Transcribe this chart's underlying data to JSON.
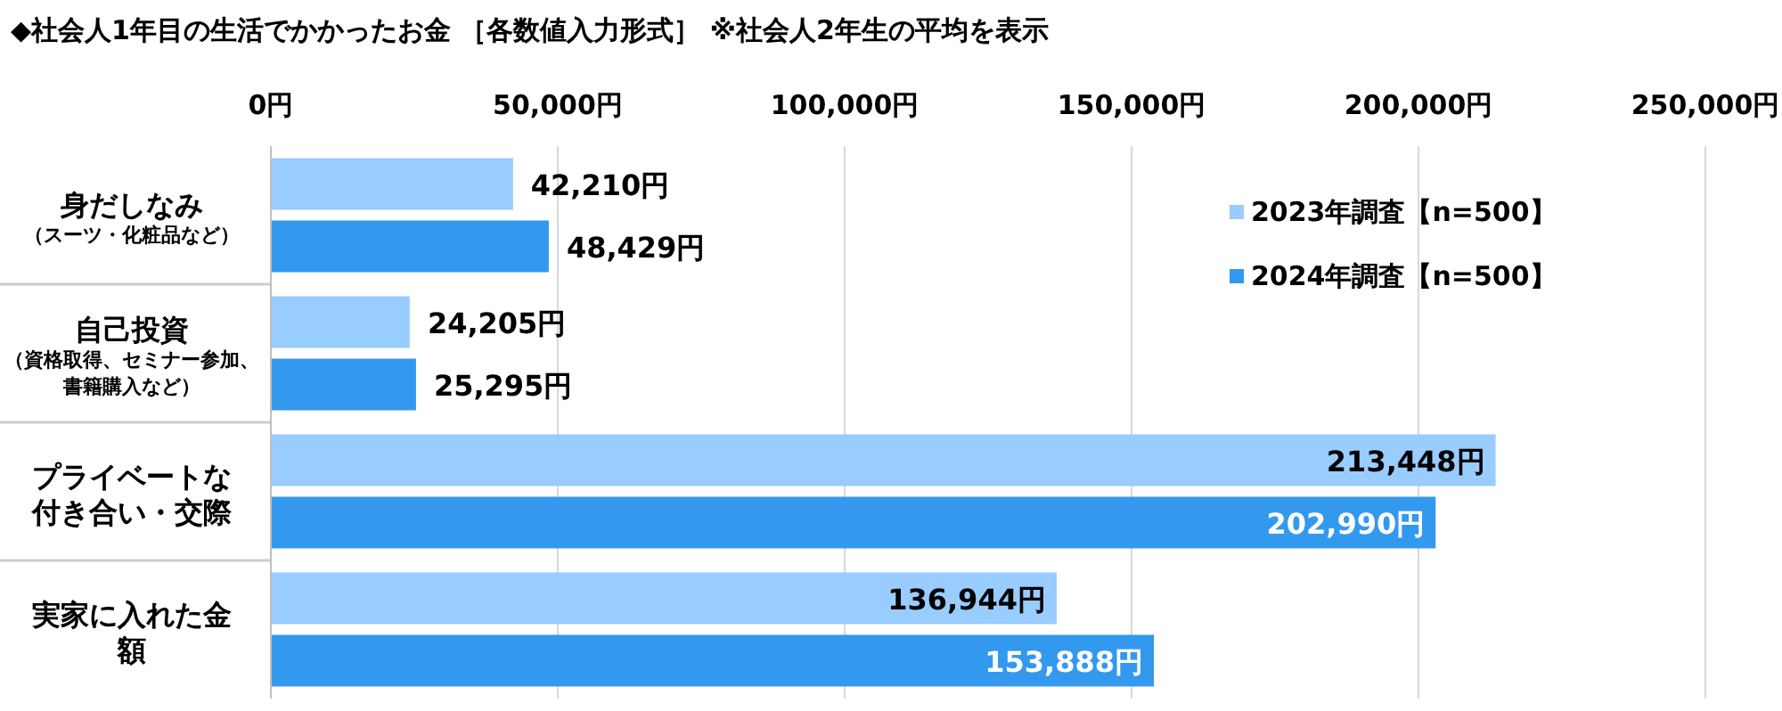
{
  "chart_data": {
    "type": "bar",
    "orientation": "horizontal",
    "title": "◆社会人1年目の生活でかかったお金 ［各数値入力形式］ ※社会人2年生の平均を表示",
    "categories": [
      "身だしなみ（スーツ・化粧品など）",
      "自己投資（資格取得、セミナー参加、書籍購入など）",
      "プライベートな付き合い・交際",
      "実家に入れた金額"
    ],
    "series": [
      {
        "name": "2023年調査【n=500】",
        "color": "#99ccff",
        "values": [
          42210,
          24205,
          213448,
          136944
        ],
        "value_labels": [
          "42,210円",
          "24,205円",
          "213,448円",
          "136,944円"
        ]
      },
      {
        "name": "2024年調査【n=500】",
        "color": "#3399ee",
        "values": [
          48429,
          25295,
          202990,
          153888
        ],
        "value_labels": [
          "48,429円",
          "25,295円",
          "202,990円",
          "153,888円"
        ]
      }
    ],
    "xlim": [
      0,
      250000
    ],
    "xticks": [
      {
        "value": 0,
        "label": "0円"
      },
      {
        "value": 50000,
        "label": "50,000円"
      },
      {
        "value": 100000,
        "label": "100,000円"
      },
      {
        "value": 150000,
        "label": "150,000円"
      },
      {
        "value": 200000,
        "label": "200,000円"
      },
      {
        "value": 250000,
        "label": "250,000円"
      }
    ],
    "grid": "x",
    "legend": "top right"
  }
}
